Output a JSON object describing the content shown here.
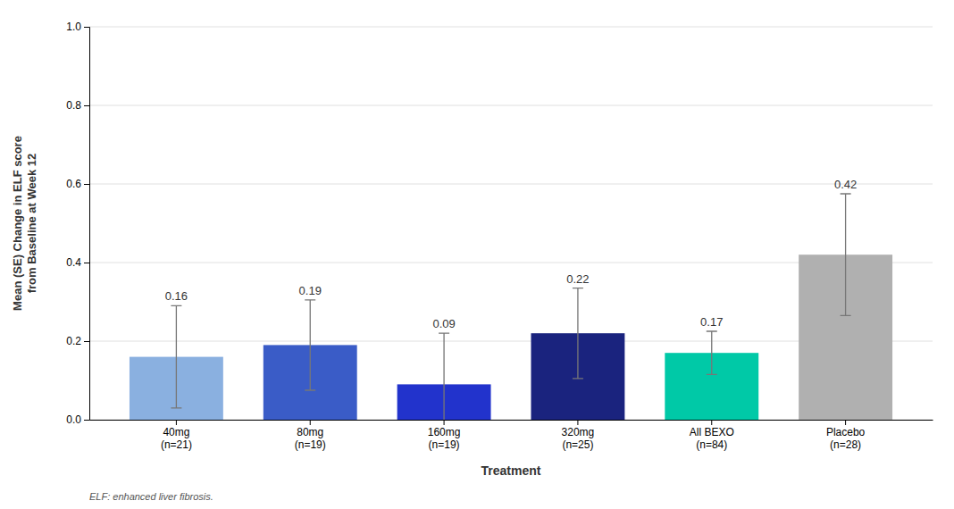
{
  "chart_data": {
    "type": "bar",
    "categories": [
      "40mg\n(n=21)",
      "80mg\n(n=19)",
      "160mg\n(n=19)",
      "320mg\n(n=25)",
      "All BEXO\n(n=84)",
      "Placebo\n(n=28)"
    ],
    "values": [
      0.16,
      0.19,
      0.09,
      0.22,
      0.17,
      0.42
    ],
    "errors": [
      0.13,
      0.115,
      0.13,
      0.115,
      0.055,
      0.155
    ],
    "colors": [
      "#8ab0e0",
      "#3a5cc7",
      "#2233cc",
      "#1a237e",
      "#00c9a7",
      "#b0b0b0"
    ],
    "data_labels": true,
    "ylabel": "Mean (SE) Change in ELF score\nfrom Baseline at Week 12",
    "xlabel": "Treatment",
    "footnote": "ELF: enhanced liver fibrosis.",
    "ylim": [
      0.0,
      1.0
    ],
    "yticks": [
      {
        "value": 0.0,
        "label": "0.0"
      },
      0.2,
      0.4,
      0.6,
      0.8,
      {
        "value": 1.0,
        "label": "1.0"
      }
    ],
    "grid": true
  }
}
